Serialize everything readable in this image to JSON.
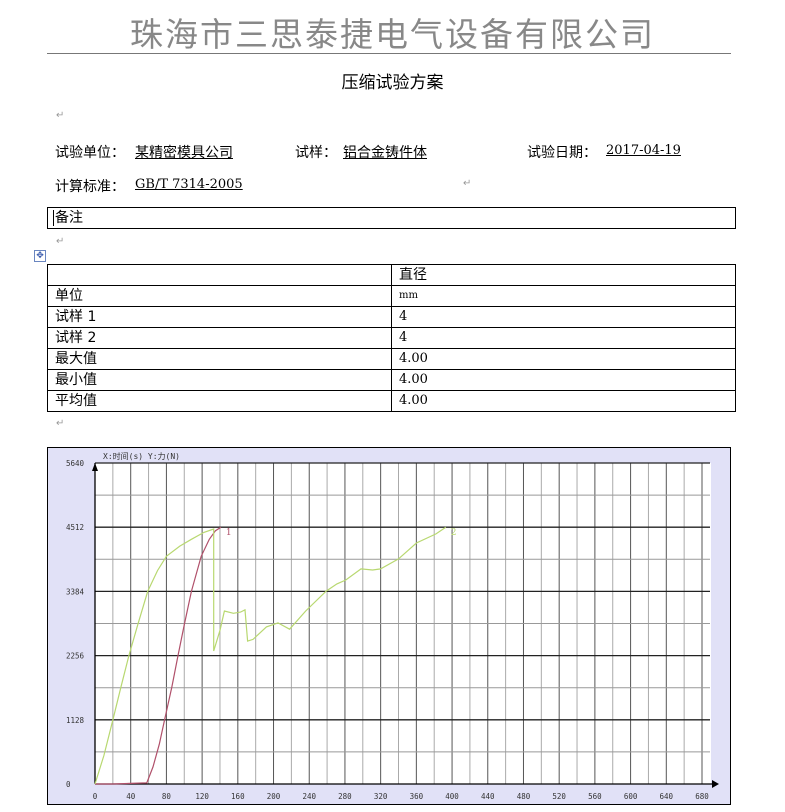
{
  "header": {
    "company": "珠海市三思泰捷电气设备有限公司"
  },
  "document": {
    "title": "压缩试验方案",
    "fields": {
      "unit_label": "试验单位：",
      "unit_value": "某精密模具公司",
      "sample_label": "试样：",
      "sample_value": "铝合金铸件体",
      "date_label": "试验日期：",
      "date_value": "2017-04-19",
      "standard_label": "计算标准：",
      "standard_value": "GB/T 7314-2005"
    },
    "remark_label": "备注",
    "paragraph_mark": "↵"
  },
  "table": {
    "header": [
      "",
      "直径"
    ],
    "rows": [
      [
        "单位",
        "mm"
      ],
      [
        "试样 1",
        "4"
      ],
      [
        "试样 2",
        "4"
      ],
      [
        "最大值",
        "4.00"
      ],
      [
        "最小值",
        "4.00"
      ],
      [
        "平均值",
        "4.00"
      ]
    ]
  },
  "chart_data": {
    "type": "line",
    "axis_caption": "X:时间(s)   Y:力(N)",
    "xlim": [
      0,
      680
    ],
    "ylim": [
      0,
      5640
    ],
    "x_ticks": [
      0,
      40,
      80,
      120,
      160,
      200,
      240,
      280,
      320,
      360,
      400,
      440,
      480,
      520,
      560,
      600,
      640,
      680
    ],
    "y_ticks": [
      0,
      1128,
      2256,
      3384,
      4512,
      5640
    ],
    "grid": true,
    "colors": {
      "background": "#e1e1f7",
      "series1": "#b0506a",
      "series2": "#b8d870"
    },
    "series": [
      {
        "name": "1",
        "points": [
          [
            0,
            0
          ],
          [
            20,
            0
          ],
          [
            40,
            10
          ],
          [
            58,
            20
          ],
          [
            65,
            300
          ],
          [
            72,
            700
          ],
          [
            78,
            1128
          ],
          [
            86,
            1700
          ],
          [
            93,
            2256
          ],
          [
            100,
            2800
          ],
          [
            108,
            3384
          ],
          [
            119,
            4000
          ],
          [
            128,
            4300
          ],
          [
            135,
            4450
          ],
          [
            141,
            4512
          ]
        ]
      },
      {
        "name": "2",
        "points": [
          [
            0,
            0
          ],
          [
            10,
            500
          ],
          [
            20,
            1128
          ],
          [
            29,
            1700
          ],
          [
            38,
            2256
          ],
          [
            48,
            2800
          ],
          [
            59,
            3384
          ],
          [
            70,
            3750
          ],
          [
            80,
            4000
          ],
          [
            95,
            4180
          ],
          [
            108,
            4300
          ],
          [
            122,
            4420
          ],
          [
            133,
            4480
          ],
          [
            133,
            2337
          ],
          [
            140,
            2700
          ],
          [
            145,
            3040
          ],
          [
            155,
            3000
          ],
          [
            163,
            3020
          ],
          [
            168,
            3060
          ],
          [
            171,
            2510
          ],
          [
            177,
            2540
          ],
          [
            192,
            2760
          ],
          [
            205,
            2830
          ],
          [
            218,
            2720
          ],
          [
            236,
            3040
          ],
          [
            259,
            3390
          ],
          [
            271,
            3515
          ],
          [
            281,
            3585
          ],
          [
            298,
            3780
          ],
          [
            311,
            3760
          ],
          [
            320,
            3780
          ],
          [
            340,
            3955
          ],
          [
            360,
            4235
          ],
          [
            382,
            4395
          ],
          [
            393,
            4512
          ]
        ]
      }
    ]
  }
}
